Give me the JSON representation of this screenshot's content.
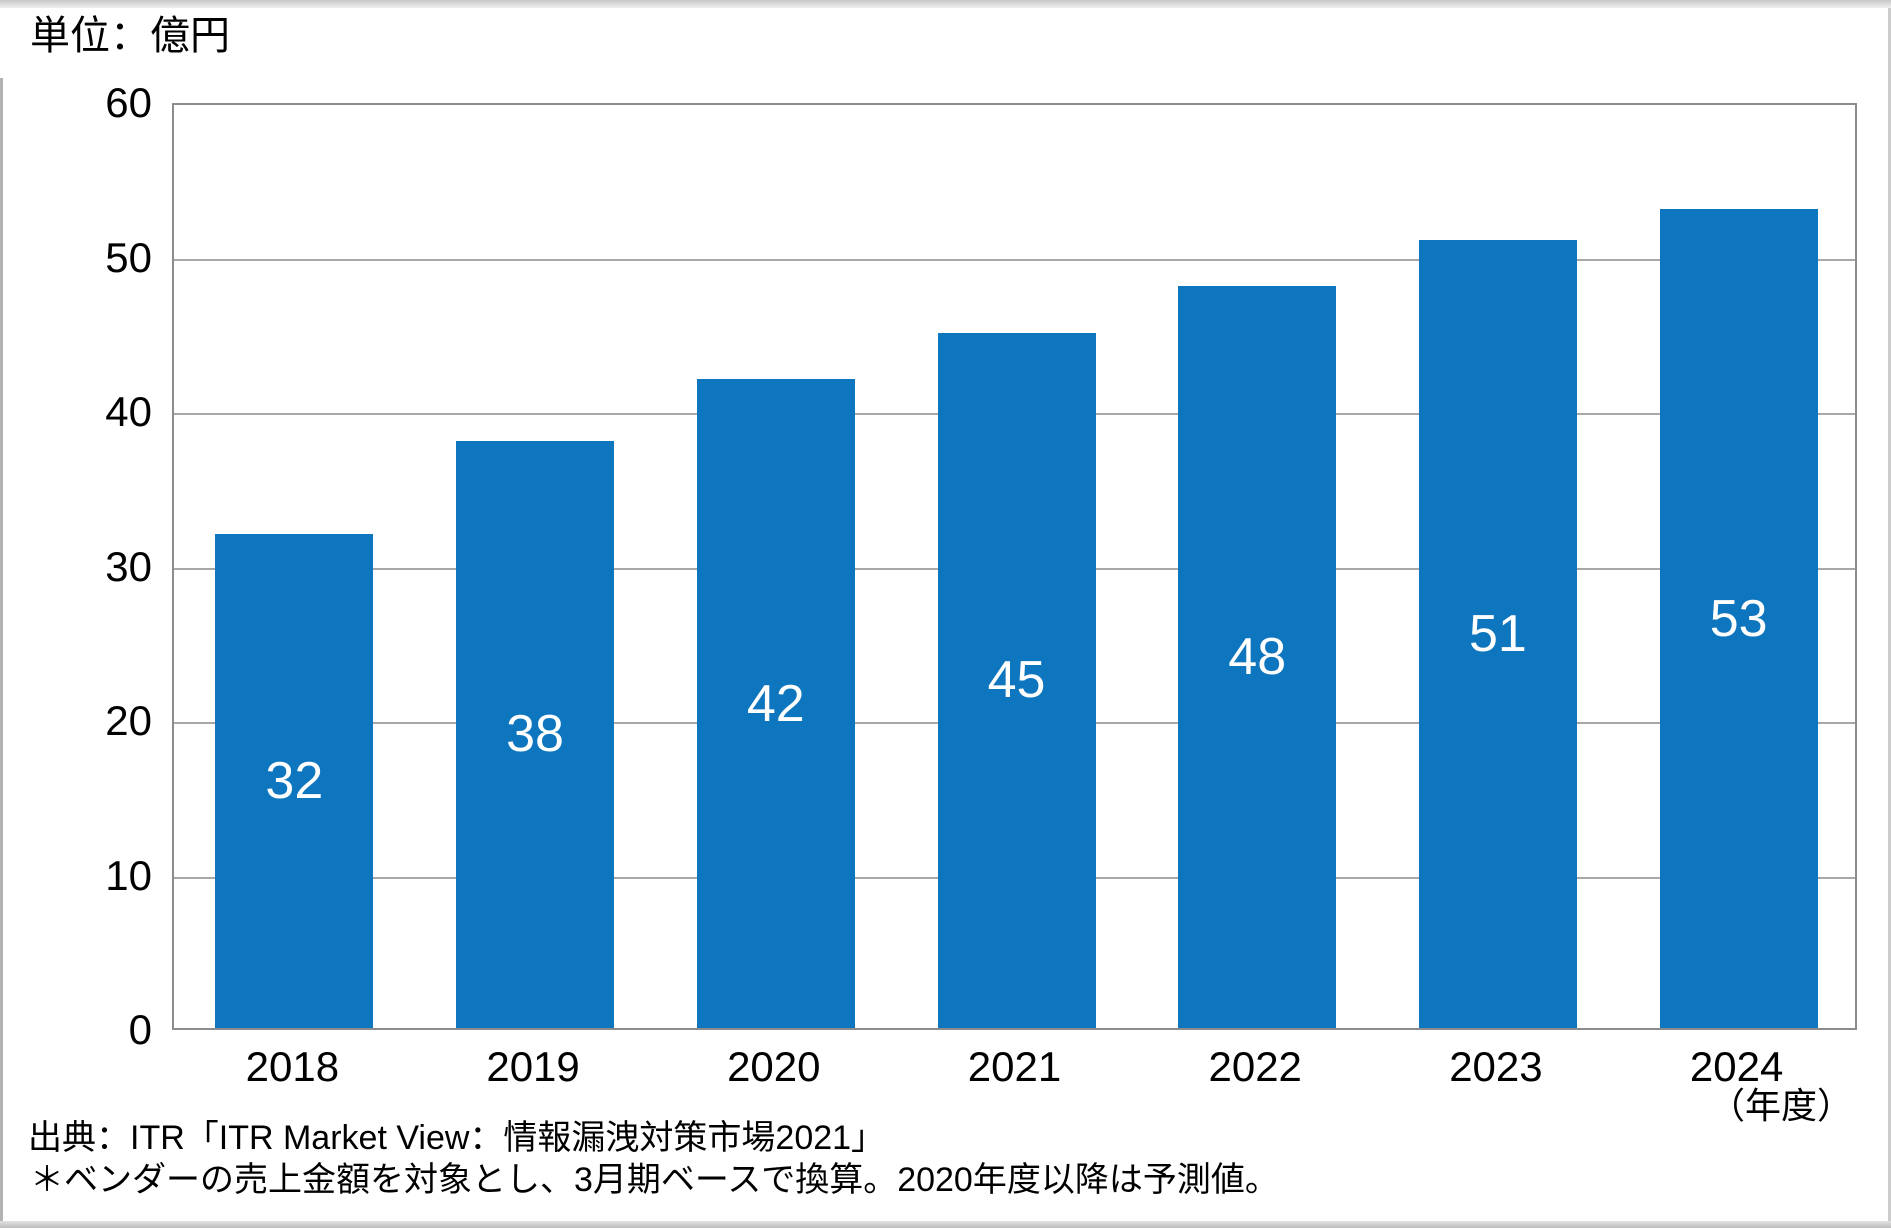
{
  "unit_label": "単位：億円",
  "x_axis_unit": "（年度）",
  "source": {
    "line1": "出典：ITR「ITR Market View：情報漏洩対策市場2021」",
    "line2": "＊ベンダーの売上金額を対象とし、3月期ベースで換算。2020年度以降は予測値。"
  },
  "colors": {
    "bar": "#0d76be",
    "grid": "#a8a8a8",
    "plot_border": "#8c8c8c",
    "value_label": "#ffffff",
    "text": "#000000"
  },
  "chart_data": {
    "type": "bar",
    "categories": [
      "2018",
      "2019",
      "2020",
      "2021",
      "2022",
      "2023",
      "2024"
    ],
    "values": [
      32,
      38,
      42,
      45,
      48,
      51,
      53
    ],
    "title": "",
    "xlabel": "（年度）",
    "ylabel": "単位：億円",
    "ylim": [
      0,
      60
    ],
    "ytick_step": 10,
    "grid": true,
    "legend": false,
    "bar_labels_shown": true
  }
}
